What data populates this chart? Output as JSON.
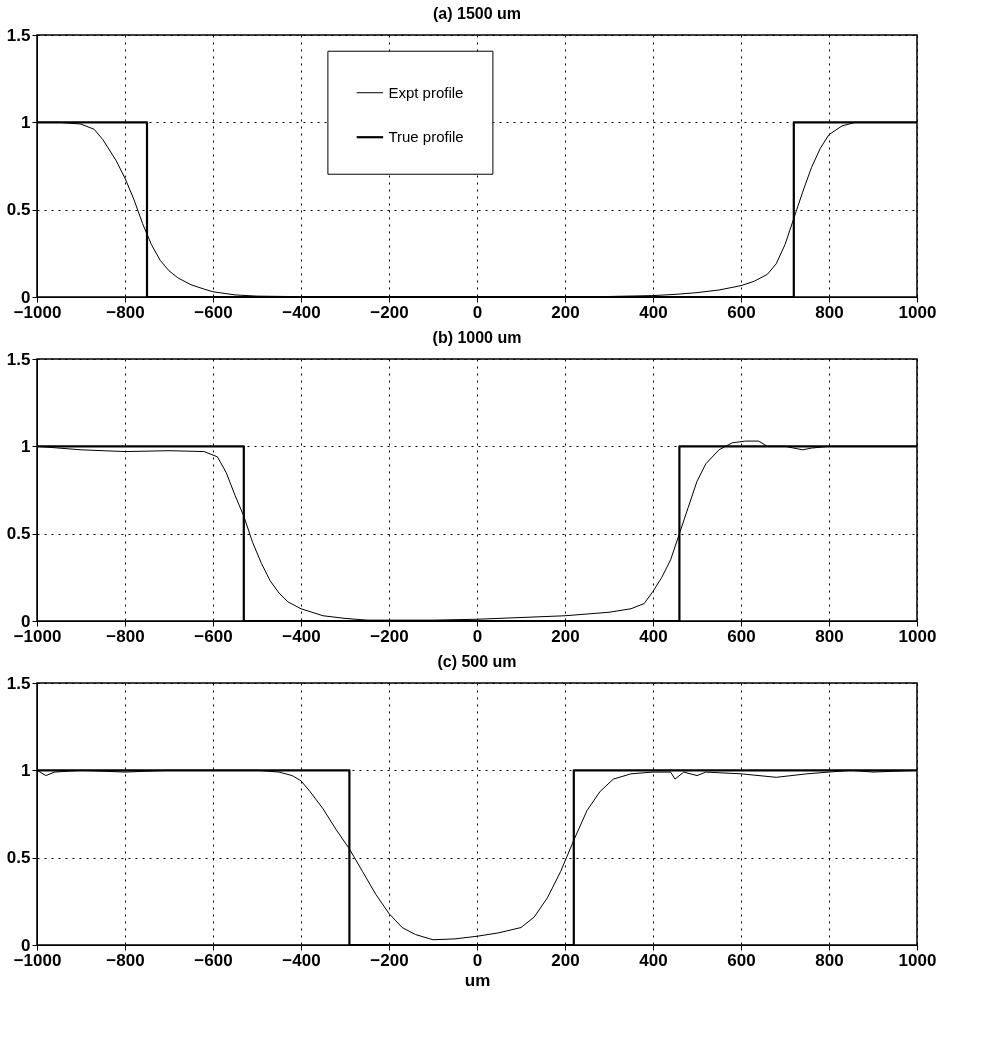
{
  "chart_data": [
    {
      "type": "line",
      "title": "(a) 1500 um",
      "xlim": [
        -1000,
        1000
      ],
      "ylim": [
        0,
        1.5
      ],
      "xticks": [
        -1000,
        -800,
        -600,
        -400,
        -200,
        0,
        200,
        400,
        600,
        800,
        1000
      ],
      "yticks": [
        0,
        0.5,
        1,
        1.5
      ],
      "grid": true,
      "legend": "top",
      "series": [
        {
          "name": "Expt profile",
          "color": "#000000",
          "x": [
            -1000,
            -950,
            -900,
            -870,
            -850,
            -820,
            -800,
            -780,
            -760,
            -740,
            -720,
            -700,
            -680,
            -650,
            -620,
            -600,
            -550,
            -500,
            -400,
            -200,
            0,
            200,
            300,
            400,
            450,
            500,
            550,
            600,
            630,
            660,
            680,
            700,
            720,
            740,
            760,
            780,
            800,
            830,
            860,
            900,
            1000
          ],
          "values": [
            1,
            1,
            0.99,
            0.96,
            0.9,
            0.78,
            0.68,
            0.56,
            0.42,
            0.3,
            0.21,
            0.15,
            0.11,
            0.07,
            0.045,
            0.03,
            0.012,
            0.005,
            0.002,
            0,
            0,
            0,
            0.003,
            0.008,
            0.015,
            0.025,
            0.04,
            0.065,
            0.09,
            0.13,
            0.19,
            0.3,
            0.45,
            0.6,
            0.74,
            0.85,
            0.93,
            0.98,
            1,
            1,
            1
          ]
        },
        {
          "name": "True profile",
          "color": "#000000",
          "x": [
            -1000,
            -750,
            -750,
            720,
            720,
            1000
          ],
          "values": [
            1,
            1,
            0,
            0,
            1,
            1
          ]
        }
      ]
    },
    {
      "type": "line",
      "title": "(b) 1000 um",
      "xlim": [
        -1000,
        1000
      ],
      "ylim": [
        0,
        1.5
      ],
      "xticks": [
        -1000,
        -800,
        -600,
        -400,
        -200,
        0,
        200,
        400,
        600,
        800,
        1000
      ],
      "yticks": [
        0,
        0.5,
        1,
        1.5
      ],
      "grid": true,
      "series": [
        {
          "color": "#000000",
          "x": [
            -1000,
            -950,
            -900,
            -800,
            -700,
            -620,
            -590,
            -570,
            -550,
            -530,
            -510,
            -490,
            -470,
            -450,
            -430,
            -400,
            -350,
            -300,
            -250,
            -200,
            -100,
            0,
            100,
            200,
            300,
            350,
            380,
            400,
            420,
            440,
            460,
            480,
            500,
            520,
            550,
            580,
            610,
            640,
            660,
            700,
            740,
            760,
            800,
            900,
            1000
          ],
          "values": [
            1,
            0.99,
            0.98,
            0.97,
            0.975,
            0.97,
            0.94,
            0.85,
            0.72,
            0.6,
            0.45,
            0.33,
            0.23,
            0.16,
            0.11,
            0.07,
            0.03,
            0.015,
            0.005,
            0.005,
            0.005,
            0.01,
            0.02,
            0.03,
            0.05,
            0.07,
            0.1,
            0.17,
            0.25,
            0.35,
            0.5,
            0.65,
            0.8,
            0.9,
            0.98,
            1.02,
            1.03,
            1.03,
            1,
            1,
            0.98,
            0.99,
            1,
            1,
            1
          ]
        },
        {
          "color": "#000000",
          "x": [
            -1000,
            -530,
            -530,
            460,
            460,
            1000
          ],
          "values": [
            1,
            1,
            0,
            0,
            1,
            1
          ]
        }
      ]
    },
    {
      "type": "line",
      "title": "(c) 500 um",
      "xlabel": "um",
      "xlim": [
        -1000,
        1000
      ],
      "ylim": [
        0,
        1.5
      ],
      "xticks": [
        -1000,
        -800,
        -600,
        -400,
        -200,
        0,
        200,
        400,
        600,
        800,
        1000
      ],
      "yticks": [
        0,
        0.5,
        1,
        1.5
      ],
      "grid": true,
      "series": [
        {
          "color": "#000000",
          "x": [
            -1000,
            -980,
            -960,
            -900,
            -800,
            -700,
            -500,
            -450,
            -420,
            -400,
            -380,
            -350,
            -320,
            -290,
            -260,
            -230,
            -200,
            -170,
            -140,
            -100,
            -50,
            0,
            50,
            100,
            130,
            160,
            190,
            220,
            250,
            280,
            310,
            350,
            400,
            440,
            450,
            470,
            500,
            520,
            600,
            680,
            750,
            850,
            900,
            1000
          ],
          "values": [
            1,
            0.97,
            0.99,
            1,
            0.99,
            1,
            1,
            0.99,
            0.97,
            0.94,
            0.88,
            0.78,
            0.66,
            0.55,
            0.42,
            0.29,
            0.18,
            0.1,
            0.06,
            0.03,
            0.035,
            0.05,
            0.07,
            0.1,
            0.16,
            0.27,
            0.42,
            0.6,
            0.77,
            0.88,
            0.95,
            0.98,
            0.99,
            0.99,
            0.95,
            0.99,
            0.97,
            0.99,
            0.98,
            0.96,
            0.98,
            1,
            0.99,
            1
          ]
        },
        {
          "color": "#000000",
          "x": [
            -1000,
            -290,
            -290,
            220,
            220,
            1000
          ],
          "values": [
            1,
            1,
            0,
            0,
            1,
            1
          ]
        }
      ]
    }
  ]
}
